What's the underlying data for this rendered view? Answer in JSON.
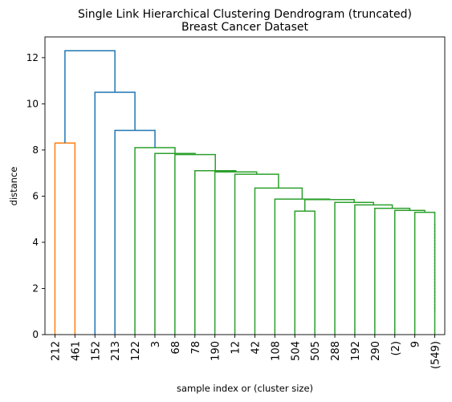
{
  "chart_data": {
    "type": "dendrogram",
    "title": "Single Link Hierarchical Clustering Dendrogram (truncated)",
    "subtitle": "Breast Cancer Dataset",
    "xlabel": "sample index or (cluster size)",
    "ylabel": "distance",
    "ylim": [
      0,
      12.9
    ],
    "yticks": [
      0,
      2,
      4,
      6,
      8,
      10,
      12
    ],
    "leaves": [
      "212",
      "461",
      "152",
      "213",
      "122",
      "3",
      "68",
      "78",
      "190",
      "12",
      "42",
      "108",
      "504",
      "505",
      "288",
      "192",
      "290",
      "(2)",
      "9",
      "(549)"
    ],
    "links": [
      {
        "left": 0,
        "right": 1,
        "height": 8.3,
        "color": "#ff7f0e"
      },
      {
        "left": 18,
        "right": 19,
        "height": 5.3,
        "color": "#2ca02c"
      },
      {
        "left": 17,
        "right": "L1",
        "height": 5.38,
        "color": "#2ca02c"
      },
      {
        "left": 16,
        "right": "L2",
        "height": 5.47,
        "color": "#2ca02c"
      },
      {
        "left": 15,
        "right": "L3",
        "height": 5.62,
        "color": "#2ca02c"
      },
      {
        "left": 14,
        "right": "L4",
        "height": 5.73,
        "color": "#2ca02c"
      },
      {
        "left": 12,
        "right": 13,
        "height": 5.35,
        "color": "#2ca02c"
      },
      {
        "left": "L6",
        "right": "L5",
        "height": 5.85,
        "color": "#2ca02c"
      },
      {
        "left": 11,
        "right": "L7",
        "height": 5.87,
        "color": "#2ca02c"
      },
      {
        "left": 10,
        "right": "L8",
        "height": 6.35,
        "color": "#2ca02c"
      },
      {
        "left": 9,
        "right": "L9",
        "height": 6.95,
        "color": "#2ca02c"
      },
      {
        "left": 8,
        "right": "L10",
        "height": 7.05,
        "color": "#2ca02c"
      },
      {
        "left": 7,
        "right": "L11",
        "height": 7.1,
        "color": "#2ca02c"
      },
      {
        "left": 6,
        "right": "L12",
        "height": 7.8,
        "color": "#2ca02c"
      },
      {
        "left": 5,
        "right": "L13",
        "height": 7.85,
        "color": "#2ca02c"
      },
      {
        "left": 4,
        "right": "L14",
        "height": 8.1,
        "color": "#2ca02c"
      },
      {
        "left": 3,
        "right": "L15",
        "height": 8.85,
        "color": "#1f77b4"
      },
      {
        "left": 2,
        "right": "L16",
        "height": 10.5,
        "color": "#1f77b4"
      },
      {
        "left": "L0",
        "right": "L17",
        "height": 12.3,
        "color": "#1f77b4"
      }
    ],
    "grid": false
  }
}
